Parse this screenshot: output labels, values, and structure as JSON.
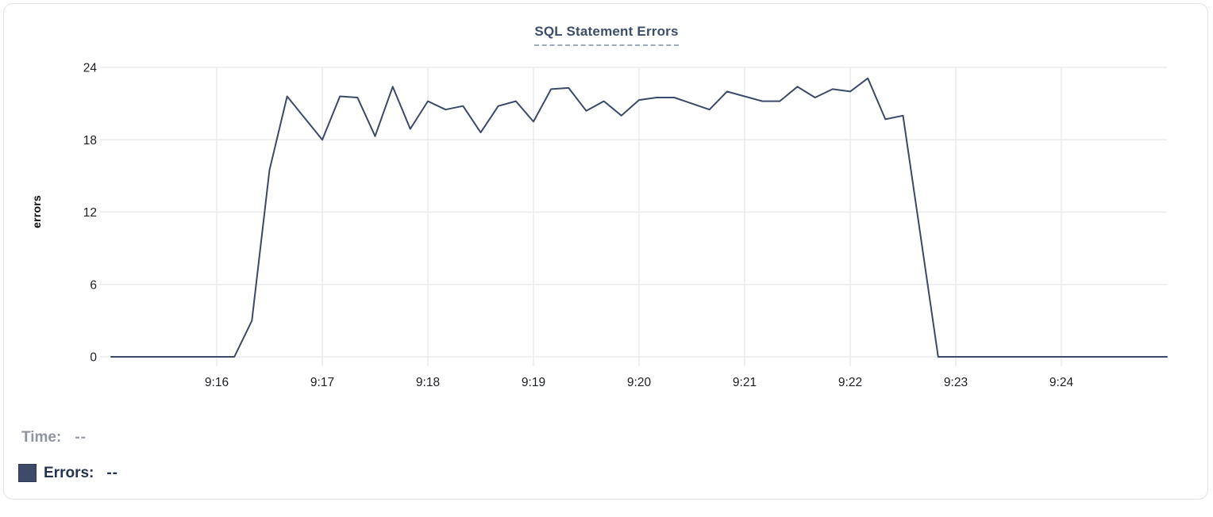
{
  "card": {
    "title": "SQL Statement Errors"
  },
  "readout": {
    "time_label": "Time:",
    "time_value": "--",
    "errors_label": "Errors:",
    "errors_value": "--"
  },
  "colors": {
    "line": "#3b4a68",
    "grid": "#eaebee",
    "tick_label": "#1c1f24",
    "title": "#3d4e6d",
    "title_underline": "#9fabbe",
    "time_label": "#8f949d",
    "time_value": "#9aa0a9",
    "errors_label": "#26334f",
    "swatch": "#3d4b68",
    "card_border": "#e2e3e6"
  },
  "chart_data": {
    "type": "line",
    "title": "SQL Statement Errors",
    "xlabel": "",
    "ylabel": "errors",
    "ylim": [
      0,
      24
    ],
    "y_ticks": [
      0,
      6,
      12,
      18,
      24
    ],
    "x_ticks": [
      "9:16",
      "9:17",
      "9:18",
      "9:19",
      "9:20",
      "9:21",
      "9:22",
      "9:23",
      "9:24"
    ],
    "x_range": [
      "9:15:00",
      "9:25:00"
    ],
    "grid": true,
    "legend_position": "bottom-left",
    "series": [
      {
        "name": "Errors",
        "points": [
          [
            "9:15:00",
            0
          ],
          [
            "9:15:10",
            0
          ],
          [
            "9:15:20",
            0
          ],
          [
            "9:15:30",
            0
          ],
          [
            "9:15:40",
            0
          ],
          [
            "9:15:50",
            0
          ],
          [
            "9:16:00",
            0
          ],
          [
            "9:16:10",
            0
          ],
          [
            "9:16:20",
            3
          ],
          [
            "9:16:30",
            15.5
          ],
          [
            "9:16:40",
            21.6
          ],
          [
            "9:16:50",
            19.8
          ],
          [
            "9:17:00",
            18
          ],
          [
            "9:17:10",
            21.6
          ],
          [
            "9:17:20",
            21.5
          ],
          [
            "9:17:30",
            18.3
          ],
          [
            "9:17:40",
            22.4
          ],
          [
            "9:17:50",
            18.9
          ],
          [
            "9:18:00",
            21.2
          ],
          [
            "9:18:10",
            20.5
          ],
          [
            "9:18:20",
            20.8
          ],
          [
            "9:18:30",
            18.6
          ],
          [
            "9:18:40",
            20.8
          ],
          [
            "9:18:50",
            21.2
          ],
          [
            "9:19:00",
            19.5
          ],
          [
            "9:19:10",
            22.2
          ],
          [
            "9:19:20",
            22.3
          ],
          [
            "9:19:30",
            20.4
          ],
          [
            "9:19:40",
            21.2
          ],
          [
            "9:19:50",
            20
          ],
          [
            "9:20:00",
            21.3
          ],
          [
            "9:20:10",
            21.5
          ],
          [
            "9:20:20",
            21.5
          ],
          [
            "9:20:30",
            21
          ],
          [
            "9:20:40",
            20.5
          ],
          [
            "9:20:50",
            22
          ],
          [
            "9:21:00",
            21.6
          ],
          [
            "9:21:10",
            21.2
          ],
          [
            "9:21:20",
            21.2
          ],
          [
            "9:21:30",
            22.4
          ],
          [
            "9:21:40",
            21.5
          ],
          [
            "9:21:50",
            22.2
          ],
          [
            "9:22:00",
            22
          ],
          [
            "9:22:10",
            23.1
          ],
          [
            "9:22:20",
            19.7
          ],
          [
            "9:22:30",
            20
          ],
          [
            "9:22:40",
            10
          ],
          [
            "9:22:50",
            0
          ],
          [
            "9:23:00",
            0
          ],
          [
            "9:23:10",
            0
          ],
          [
            "9:23:20",
            0
          ],
          [
            "9:23:30",
            0
          ],
          [
            "9:23:40",
            0
          ],
          [
            "9:23:50",
            0
          ],
          [
            "9:24:00",
            0
          ],
          [
            "9:24:10",
            0
          ],
          [
            "9:24:20",
            0
          ],
          [
            "9:24:30",
            0
          ],
          [
            "9:24:40",
            0
          ],
          [
            "9:24:50",
            0
          ],
          [
            "9:25:00",
            0
          ]
        ]
      }
    ]
  }
}
